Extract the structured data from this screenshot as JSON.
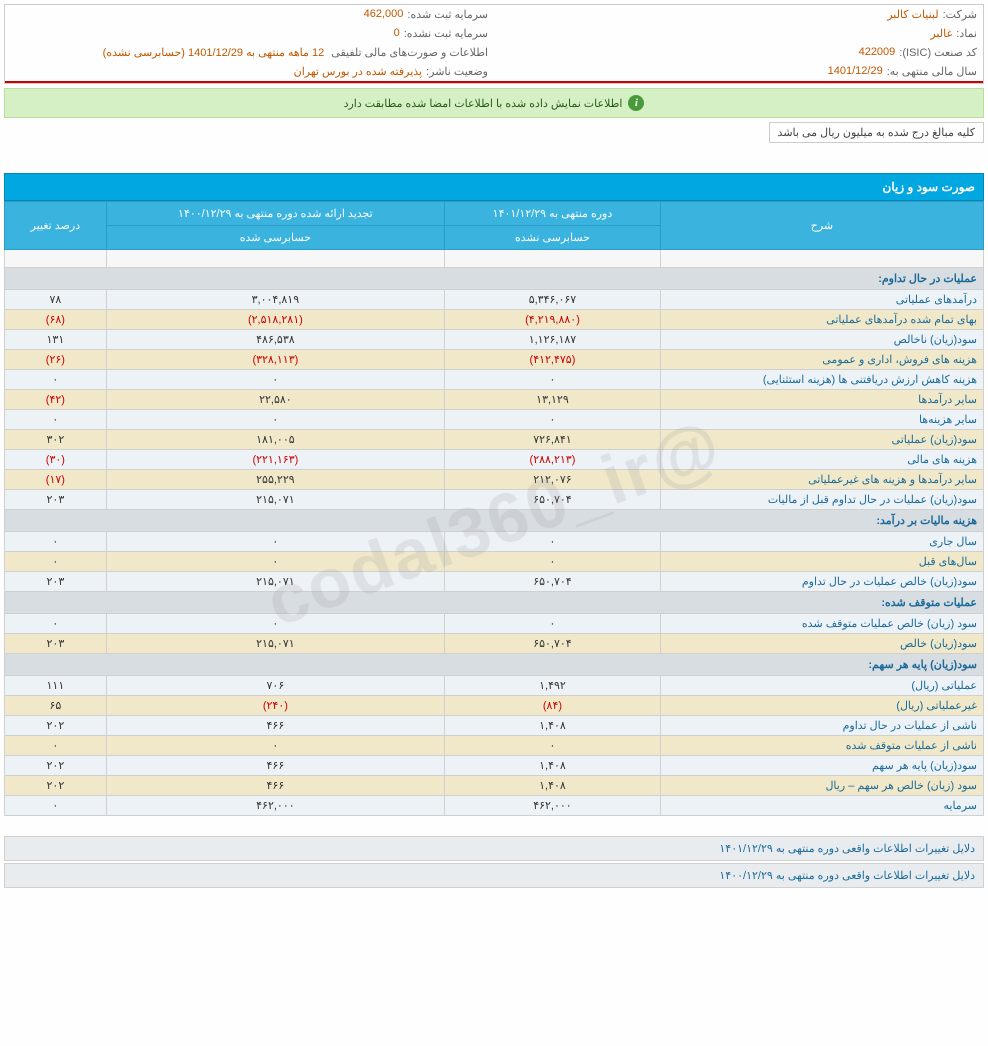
{
  "header": {
    "company_label": "شرکت:",
    "company_value": "لبنیات کالبر",
    "capital_reg_label": "سرمایه ثبت شده:",
    "capital_reg_value": "462,000",
    "symbol_label": "نماد:",
    "symbol_value": "غالبر",
    "capital_unreg_label": "سرمایه ثبت نشده:",
    "capital_unreg_value": "0",
    "isic_label": "کد صنعت (ISIC):",
    "isic_value": "422009",
    "report_label": "اطلاعات و صورت‌های مالی تلفیقی",
    "report_detail": "12 ماهه منتهی به 1401/12/29 (حسابرسی نشده)",
    "fy_label": "سال مالی منتهی به:",
    "fy_value": "1401/12/29",
    "status_label": "وضعیت ناشر:",
    "status_value": "پذیرفته شده در بورس تهران"
  },
  "alert": "اطلاعات نمایش داده شده با اطلاعات امضا شده مطابقت دارد",
  "note": "کلیه مبالغ درج شده به میلیون ریال می باشد",
  "watermark": "@codal360_ir",
  "section_title": "صورت سود و زیان",
  "table": {
    "head": {
      "desc": "شرح",
      "p1": "دوره منتهی به ۱۴۰۱/۱۲/۲۹",
      "p2": "تجدید ارائه شده دوره منتهی به ۱۴۰۰/۱۲/۲۹",
      "pct": "درصد تغییر",
      "aud1": "حسابرسی نشده",
      "aud2": "حسابرسی شده"
    },
    "groups": {
      "g1": "عملیات در حال تداوم:",
      "g2": "هزینه مالیات بر درآمد:",
      "g3": "عملیات متوقف شده:",
      "g4": "سود(زیان) پایه هر سهم:"
    },
    "rows": [
      {
        "cls": "plain",
        "desc": "درآمدهای عملیاتی",
        "v1": "۵,۳۴۶,۰۶۷",
        "n1": false,
        "v2": "۳,۰۰۴,۸۱۹",
        "n2": false,
        "pct": "۷۸",
        "npct": false
      },
      {
        "cls": "alt",
        "desc": "بهای تمام شده درآمدهای عملیاتی",
        "v1": "(۴,۲۱۹,۸۸۰)",
        "n1": true,
        "v2": "(۲,۵۱۸,۲۸۱)",
        "n2": true,
        "pct": "(۶۸)",
        "npct": true
      },
      {
        "cls": "plain",
        "desc": "سود(زیان) ناخالص",
        "v1": "۱,۱۲۶,۱۸۷",
        "n1": false,
        "v2": "۴۸۶,۵۳۸",
        "n2": false,
        "pct": "۱۳۱",
        "npct": false
      },
      {
        "cls": "alt",
        "desc": "هزینه های فروش، اداری و عمومی",
        "v1": "(۴۱۲,۴۷۵)",
        "n1": true,
        "v2": "(۳۲۸,۱۱۳)",
        "n2": true,
        "pct": "(۲۶)",
        "npct": true
      },
      {
        "cls": "plain",
        "desc": "هزینه کاهش ارزش دریافتنی ها (هزینه استثنایی)",
        "v1": "۰",
        "n1": false,
        "v2": "۰",
        "n2": false,
        "pct": "۰",
        "npct": false
      },
      {
        "cls": "alt",
        "desc": "سایر درآمدها",
        "v1": "۱۳,۱۲۹",
        "n1": false,
        "v2": "۲۲,۵۸۰",
        "n2": false,
        "pct": "(۴۲)",
        "npct": true
      },
      {
        "cls": "plain",
        "desc": "سایر هزینه‌ها",
        "v1": "۰",
        "n1": false,
        "v2": "۰",
        "n2": false,
        "pct": "۰",
        "npct": false
      },
      {
        "cls": "alt",
        "desc": "سود(زیان) عملیاتی",
        "v1": "۷۲۶,۸۴۱",
        "n1": false,
        "v2": "۱۸۱,۰۰۵",
        "n2": false,
        "pct": "۳۰۲",
        "npct": false
      },
      {
        "cls": "plain",
        "desc": "هزینه های مالی",
        "v1": "(۲۸۸,۲۱۳)",
        "n1": true,
        "v2": "(۲۲۱,۱۶۳)",
        "n2": true,
        "pct": "(۳۰)",
        "npct": true
      },
      {
        "cls": "alt",
        "desc": "سایر درآمدها و هزینه های غیرعملیاتی",
        "v1": "۲۱۲,۰۷۶",
        "n1": false,
        "v2": "۲۵۵,۲۲۹",
        "n2": false,
        "pct": "(۱۷)",
        "npct": true
      },
      {
        "cls": "plain",
        "desc": "سود(زیان) عملیات در حال تداوم قبل از مالیات",
        "v1": "۶۵۰,۷۰۴",
        "n1": false,
        "v2": "۲۱۵,۰۷۱",
        "n2": false,
        "pct": "۲۰۳",
        "npct": false
      }
    ],
    "rows2": [
      {
        "cls": "plain",
        "desc": "سال جاری",
        "v1": "۰",
        "n1": false,
        "v2": "۰",
        "n2": false,
        "pct": "۰",
        "npct": false
      },
      {
        "cls": "alt",
        "desc": "سال‌های قبل",
        "v1": "۰",
        "n1": false,
        "v2": "۰",
        "n2": false,
        "pct": "۰",
        "npct": false
      },
      {
        "cls": "plain",
        "desc": "سود(زیان) خالص عملیات در حال تداوم",
        "v1": "۶۵۰,۷۰۴",
        "n1": false,
        "v2": "۲۱۵,۰۷۱",
        "n2": false,
        "pct": "۲۰۳",
        "npct": false
      }
    ],
    "rows3": [
      {
        "cls": "plain",
        "desc": "سود (زیان) خالص عملیات متوقف شده",
        "v1": "۰",
        "n1": false,
        "v2": "۰",
        "n2": false,
        "pct": "۰",
        "npct": false
      },
      {
        "cls": "alt",
        "desc": "سود(زیان) خالص",
        "v1": "۶۵۰,۷۰۴",
        "n1": false,
        "v2": "۲۱۵,۰۷۱",
        "n2": false,
        "pct": "۲۰۳",
        "npct": false
      }
    ],
    "rows4": [
      {
        "cls": "plain",
        "desc": "عملیاتی (ریال)",
        "v1": "۱,۴۹۲",
        "n1": false,
        "v2": "۷۰۶",
        "n2": false,
        "pct": "۱۱۱",
        "npct": false
      },
      {
        "cls": "alt",
        "desc": "غیرعملیاتی (ریال)",
        "v1": "(۸۴)",
        "n1": true,
        "v2": "(۲۴۰)",
        "n2": true,
        "pct": "۶۵",
        "npct": false
      },
      {
        "cls": "plain",
        "desc": "ناشی از عملیات در حال تداوم",
        "v1": "۱,۴۰۸",
        "n1": false,
        "v2": "۴۶۶",
        "n2": false,
        "pct": "۲۰۲",
        "npct": false
      },
      {
        "cls": "alt",
        "desc": "ناشی از عملیات متوقف شده",
        "v1": "۰",
        "n1": false,
        "v2": "۰",
        "n2": false,
        "pct": "۰",
        "npct": false
      },
      {
        "cls": "plain",
        "desc": "سود(زیان) پایه هر سهم",
        "v1": "۱,۴۰۸",
        "n1": false,
        "v2": "۴۶۶",
        "n2": false,
        "pct": "۲۰۲",
        "npct": false
      },
      {
        "cls": "alt",
        "desc": "سود (زیان) خالص هر سهم – ریال",
        "v1": "۱,۴۰۸",
        "n1": false,
        "v2": "۴۶۶",
        "n2": false,
        "pct": "۲۰۲",
        "npct": false
      },
      {
        "cls": "plain",
        "desc": "سرمایه",
        "v1": "۴۶۲,۰۰۰",
        "n1": false,
        "v2": "۴۶۲,۰۰۰",
        "n2": false,
        "pct": "۰",
        "npct": false
      }
    ]
  },
  "footer": {
    "r1": "دلایل تغییرات اطلاعات واقعی دوره منتهی به ۱۴۰۱/۱۲/۲۹",
    "r2": "دلایل تغییرات اطلاعات واقعی دوره منتهی به ۱۴۰۰/۱۲/۲۹"
  }
}
